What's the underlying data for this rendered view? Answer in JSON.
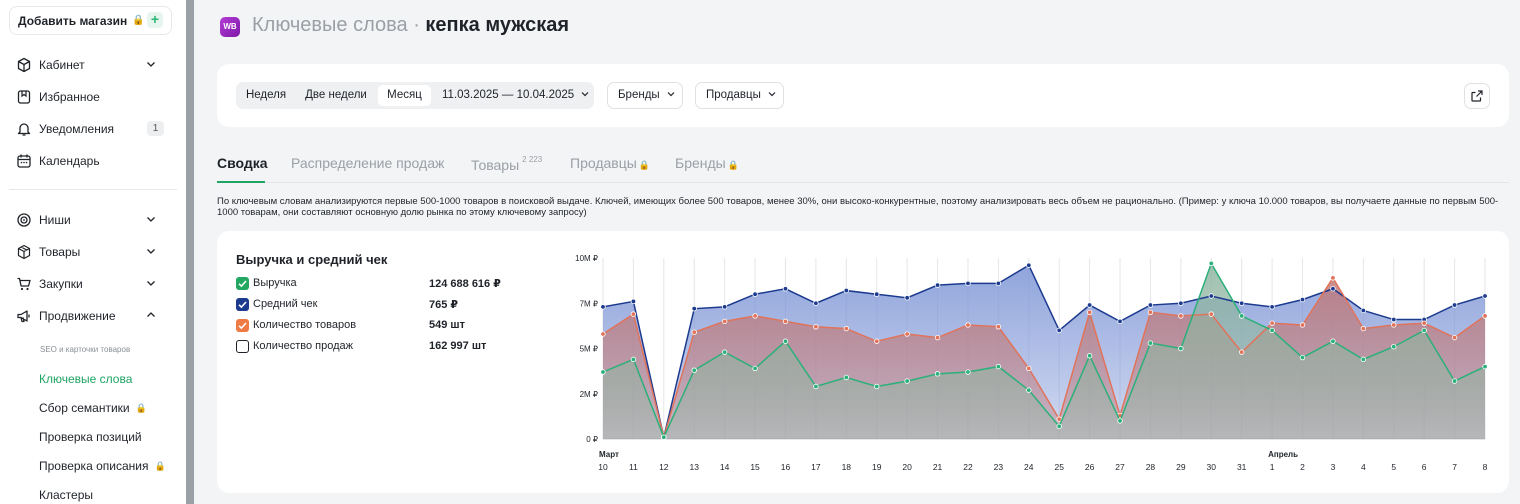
{
  "sidebar": {
    "add_store": "Добавить магазин",
    "items": [
      {
        "label": "Кабинет",
        "icon": "cube-icon",
        "chevron": "down"
      },
      {
        "label": "Избранное",
        "icon": "bookmark-icon"
      },
      {
        "label": "Уведомления",
        "icon": "bell-icon",
        "badge": "1"
      },
      {
        "label": "Календарь",
        "icon": "calendar-icon"
      },
      {
        "label": "Ниши",
        "icon": "target-icon",
        "chevron": "down"
      },
      {
        "label": "Товары",
        "icon": "box-icon",
        "chevron": "down"
      },
      {
        "label": "Закупки",
        "icon": "cart-icon",
        "chevron": "down"
      },
      {
        "label": "Продвижение",
        "icon": "megaphone-icon",
        "chevron": "up"
      }
    ],
    "sub_caption": "SEO и карточки товаров",
    "sub_items": [
      {
        "label": "Ключевые слова",
        "active": true
      },
      {
        "label": "Сбор семантики",
        "locked": true
      },
      {
        "label": "Проверка позиций"
      },
      {
        "label": "Проверка описания",
        "locked": true
      },
      {
        "label": "Кластеры"
      }
    ]
  },
  "header": {
    "logo": "WB",
    "title_prefix": "Ключевые слова · ",
    "title_query": "кепка мужская"
  },
  "filters": {
    "periods": [
      "Неделя",
      "Две недели",
      "Месяц"
    ],
    "active_period": "Месяц",
    "date_range": "11.03.2025 — 10.04.2025",
    "brands_label": "Бренды",
    "sellers_label": "Продавцы"
  },
  "tabs": [
    {
      "label": "Сводка",
      "active": true
    },
    {
      "label": "Распределение продаж"
    },
    {
      "label": "Товары",
      "count": "2 223"
    },
    {
      "label": "Продавцы",
      "locked": true
    },
    {
      "label": "Бренды",
      "locked": true
    }
  ],
  "note": "По ключевым словам анализируются первые 500-1000 товаров в поисковой выдаче. Ключей, имеющих более 500 товаров, менее 30%, они высоко-конкурентные, поэтому анализировать весь объем не рационально. (Пример: у ключа 10.000 товаров, вы получаете данные по первым 500-1000 товарам, они составляют основную долю рынка по этому ключевому запросу)",
  "chart_card": {
    "title": "Выручка и средний чек",
    "legend": [
      {
        "label": "Выручка",
        "value": "124 688 616 ₽",
        "checked": true,
        "color": "#22a861"
      },
      {
        "label": "Средний чек",
        "value": "765 ₽",
        "checked": true,
        "color": "#1c3a8e"
      },
      {
        "label": "Количество товаров",
        "value": "549 шт",
        "checked": true,
        "color": "#ef7a45"
      },
      {
        "label": "Количество продаж",
        "value": "162 997 шт",
        "checked": false,
        "color": "#1f2329"
      }
    ]
  },
  "chart_data": {
    "type": "area",
    "title": "Выручка и средний чек",
    "x": [
      "10",
      "11",
      "12",
      "13",
      "14",
      "15",
      "16",
      "17",
      "18",
      "19",
      "20",
      "21",
      "22",
      "23",
      "24",
      "25",
      "26",
      "27",
      "28",
      "29",
      "30",
      "31",
      "1",
      "2",
      "3",
      "4",
      "5",
      "6",
      "7",
      "8"
    ],
    "month_labels": [
      {
        "at": "10",
        "label": "Март"
      },
      {
        "at": "1",
        "label": "Апрель"
      }
    ],
    "y_ticks": [
      "0 ₽",
      "2M ₽",
      "5M ₽",
      "7M ₽",
      "10M ₽"
    ],
    "ylim": [
      0,
      10
    ],
    "series": [
      {
        "name": "Средний чек",
        "color": "#1c3a8e",
        "fill": "#7d95d6",
        "values": [
          7.3,
          7.6,
          0.1,
          7.2,
          7.3,
          8.0,
          8.3,
          7.5,
          8.2,
          8.0,
          7.8,
          8.5,
          8.6,
          8.6,
          9.6,
          6.0,
          7.4,
          6.5,
          7.4,
          7.5,
          7.9,
          7.5,
          7.3,
          7.7,
          8.3,
          7.1,
          6.6,
          6.6,
          7.4,
          7.9
        ]
      },
      {
        "name": "Количество товаров",
        "color": "#e0735a",
        "fill": "#c07a7a",
        "values": [
          5.8,
          6.9,
          0.1,
          5.9,
          6.5,
          6.8,
          6.5,
          6.2,
          6.1,
          5.4,
          5.8,
          5.6,
          6.3,
          6.2,
          3.9,
          1.1,
          7.0,
          1.3,
          7.0,
          6.8,
          6.9,
          4.8,
          6.4,
          6.3,
          8.9,
          6.1,
          6.3,
          6.4,
          5.6,
          6.8
        ]
      },
      {
        "name": "Выручка",
        "color": "#2bb07a",
        "fill": "#8fb5a0",
        "values": [
          3.7,
          4.4,
          0.1,
          3.8,
          4.8,
          3.9,
          5.4,
          2.9,
          3.4,
          2.9,
          3.2,
          3.6,
          3.7,
          4.0,
          2.7,
          0.7,
          4.6,
          1.0,
          5.3,
          5.0,
          9.7,
          6.8,
          6.0,
          4.5,
          5.4,
          4.4,
          5.1,
          6.0,
          3.2,
          4.0
        ]
      }
    ]
  }
}
